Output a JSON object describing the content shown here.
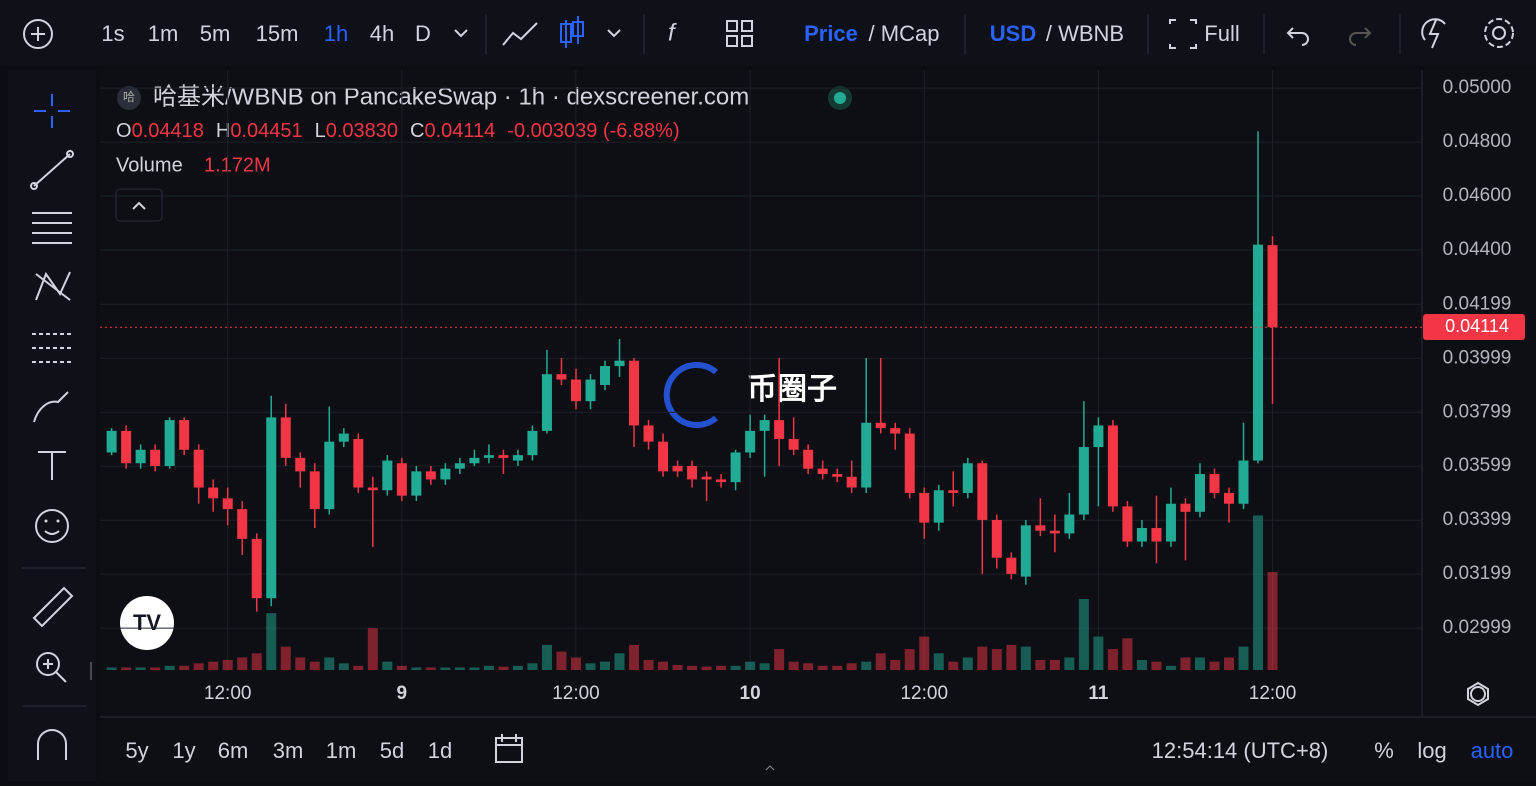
{
  "toolbar": {
    "intervals": [
      "1s",
      "1m",
      "5m",
      "15m",
      "1h",
      "4h",
      "D"
    ],
    "price": "Price",
    "mcap": "/ MCap",
    "usd": "USD",
    "wbnb": "/ WBNB",
    "full": "Full"
  },
  "legend": {
    "title": "哈基米/WBNB on PancakeSwap · 1h · dexscreener.com",
    "o": "O",
    "open": "0.04418",
    "h": "H",
    "high": "0.04451",
    "l": "L",
    "low": "0.03830",
    "c": "C",
    "close": "0.04114",
    "change": "-0.003039 (-6.88%)",
    "volume": "Volume",
    "volume_value": "1.172M"
  },
  "watermark": "币圈子",
  "bottom": {
    "ranges": [
      "5y",
      "1y",
      "6m",
      "3m",
      "1m",
      "5d",
      "1d"
    ],
    "time": "12:54:14 (UTC+8)",
    "percent": "%",
    "log": "log",
    "auto": "auto"
  },
  "chart_data": {
    "type": "candlestick",
    "open": [
      0.0365,
      0.0373,
      0.0361,
      0.0366,
      0.036,
      0.0377,
      0.0366,
      0.0352,
      0.0348,
      0.0344,
      0.0333,
      0.0311,
      0.0378,
      0.0363,
      0.0358,
      0.0344,
      0.0369,
      0.037,
      0.0352,
      0.0351,
      0.0361,
      0.0349,
      0.0358,
      0.0355,
      0.0359,
      0.0361,
      0.0363,
      0.0364,
      0.0362,
      0.0364,
      0.0373,
      0.0394,
      0.0392,
      0.0384,
      0.039,
      0.0397,
      0.0399,
      0.0375,
      0.0369,
      0.036,
      0.036,
      0.0356,
      0.0355,
      0.0354,
      0.0365,
      0.0373,
      0.0377,
      0.037,
      0.0366,
      0.0359,
      0.0357,
      0.0356,
      0.0352,
      0.0376,
      0.0374,
      0.0372,
      0.035,
      0.0339,
      0.0351,
      0.035,
      0.0361,
      0.034,
      0.0326,
      0.0319,
      0.0338,
      0.0336,
      0.0335,
      0.0342,
      0.0367,
      0.0375,
      0.0345,
      0.0332,
      0.0337,
      0.0332,
      0.0346,
      0.0343,
      0.0357,
      0.035,
      0.0346,
      0.0362,
      0.04418
    ],
    "high": [
      0.0374,
      0.0375,
      0.0368,
      0.0368,
      0.0378,
      0.0378,
      0.0368,
      0.0355,
      0.0352,
      0.0347,
      0.0335,
      0.0386,
      0.0383,
      0.0365,
      0.0361,
      0.0382,
      0.0374,
      0.0372,
      0.0356,
      0.0364,
      0.0363,
      0.036,
      0.036,
      0.0361,
      0.0363,
      0.0366,
      0.0368,
      0.0366,
      0.0366,
      0.0375,
      0.0403,
      0.04,
      0.0396,
      0.0394,
      0.0399,
      0.0407,
      0.04,
      0.0377,
      0.0372,
      0.0362,
      0.0362,
      0.0358,
      0.0357,
      0.0366,
      0.0379,
      0.0379,
      0.04,
      0.0378,
      0.0368,
      0.0362,
      0.0359,
      0.0362,
      0.04,
      0.04,
      0.0376,
      0.0374,
      0.0352,
      0.0353,
      0.0358,
      0.0363,
      0.0362,
      0.0342,
      0.0328,
      0.034,
      0.0348,
      0.0342,
      0.035,
      0.0384,
      0.0378,
      0.0377,
      0.0347,
      0.034,
      0.0349,
      0.0352,
      0.0348,
      0.0361,
      0.0359,
      0.0352,
      0.0376,
      0.0484,
      0.04451
    ],
    "low": [
      0.0364,
      0.0359,
      0.0359,
      0.0358,
      0.0359,
      0.0364,
      0.0346,
      0.0343,
      0.0338,
      0.0327,
      0.0306,
      0.0308,
      0.036,
      0.0352,
      0.0337,
      0.0342,
      0.0367,
      0.035,
      0.033,
      0.0349,
      0.0347,
      0.0347,
      0.0353,
      0.0353,
      0.0357,
      0.036,
      0.0361,
      0.0357,
      0.036,
      0.0362,
      0.0372,
      0.039,
      0.0381,
      0.0381,
      0.0388,
      0.0393,
      0.0367,
      0.0366,
      0.0356,
      0.0356,
      0.0352,
      0.0347,
      0.0352,
      0.0351,
      0.0363,
      0.0356,
      0.036,
      0.0364,
      0.0357,
      0.0355,
      0.0354,
      0.035,
      0.035,
      0.0372,
      0.0366,
      0.0348,
      0.0333,
      0.0336,
      0.0345,
      0.0348,
      0.032,
      0.0322,
      0.0318,
      0.0316,
      0.0334,
      0.0328,
      0.0333,
      0.034,
      0.0345,
      0.0343,
      0.033,
      0.033,
      0.0324,
      0.033,
      0.0325,
      0.0341,
      0.0348,
      0.0339,
      0.0344,
      0.0361,
      0.0383
    ],
    "close": [
      0.0373,
      0.0361,
      0.0366,
      0.036,
      0.0377,
      0.0366,
      0.0352,
      0.0348,
      0.0344,
      0.0333,
      0.0311,
      0.0378,
      0.0363,
      0.0358,
      0.0344,
      0.0369,
      0.0372,
      0.0352,
      0.0351,
      0.0362,
      0.0349,
      0.0358,
      0.0355,
      0.0359,
      0.0361,
      0.0363,
      0.0364,
      0.0363,
      0.0364,
      0.0373,
      0.0394,
      0.0392,
      0.0384,
      0.0392,
      0.0397,
      0.0399,
      0.0375,
      0.0369,
      0.0358,
      0.0358,
      0.0355,
      0.0355,
      0.0354,
      0.0365,
      0.0373,
      0.0377,
      0.037,
      0.0366,
      0.0359,
      0.0357,
      0.0356,
      0.0352,
      0.0376,
      0.0374,
      0.0372,
      0.035,
      0.0339,
      0.0351,
      0.035,
      0.0361,
      0.034,
      0.0326,
      0.032,
      0.0338,
      0.0336,
      0.0335,
      0.0342,
      0.0367,
      0.0375,
      0.0345,
      0.0332,
      0.0337,
      0.0332,
      0.0346,
      0.0343,
      0.0357,
      0.035,
      0.0346,
      0.0362,
      0.0442,
      0.04114
    ],
    "volume": [
      30000,
      30000,
      30000,
      30000,
      50000,
      50000,
      80000,
      100000,
      120000,
      150000,
      200000,
      680000,
      280000,
      150000,
      100000,
      150000,
      80000,
      50000,
      500000,
      100000,
      50000,
      30000,
      30000,
      30000,
      30000,
      30000,
      50000,
      40000,
      50000,
      80000,
      300000,
      220000,
      150000,
      80000,
      100000,
      200000,
      300000,
      120000,
      100000,
      60000,
      50000,
      40000,
      50000,
      50000,
      100000,
      80000,
      250000,
      100000,
      80000,
      50000,
      50000,
      80000,
      100000,
      200000,
      120000,
      250000,
      400000,
      200000,
      100000,
      150000,
      280000,
      250000,
      300000,
      280000,
      120000,
      120000,
      150000,
      850000,
      400000,
      250000,
      380000,
      120000,
      100000,
      50000,
      150000,
      150000,
      100000,
      150000,
      280000,
      1850000,
      1172000
    ],
    "up_color": "#22ab94",
    "down_color": "#f23645",
    "xlim": [
      -0.8,
      90.3
    ],
    "xticks": [
      {
        "value": 8,
        "label": "12:00"
      },
      {
        "value": 20,
        "label": "9"
      },
      {
        "value": 32,
        "label": "12:00"
      },
      {
        "value": 44,
        "label": "10"
      },
      {
        "value": 56,
        "label": "12:00"
      },
      {
        "value": 68,
        "label": "11"
      },
      {
        "value": 80,
        "label": "12:00"
      }
    ],
    "ylim": [
      0.02844,
      0.05067
    ],
    "yticks": [
      {
        "value": 0.05,
        "label": "0.05000"
      },
      {
        "value": 0.048,
        "label": "0.04800"
      },
      {
        "value": 0.046,
        "label": "0.04600"
      },
      {
        "value": 0.044,
        "label": "0.04400"
      },
      0.04199,
      0.03999,
      0.03799,
      0.03599,
      0.03399,
      0.03199,
      0.02999
    ],
    "volume_ylim": [
      0,
      7180000
    ],
    "grid": true
  }
}
